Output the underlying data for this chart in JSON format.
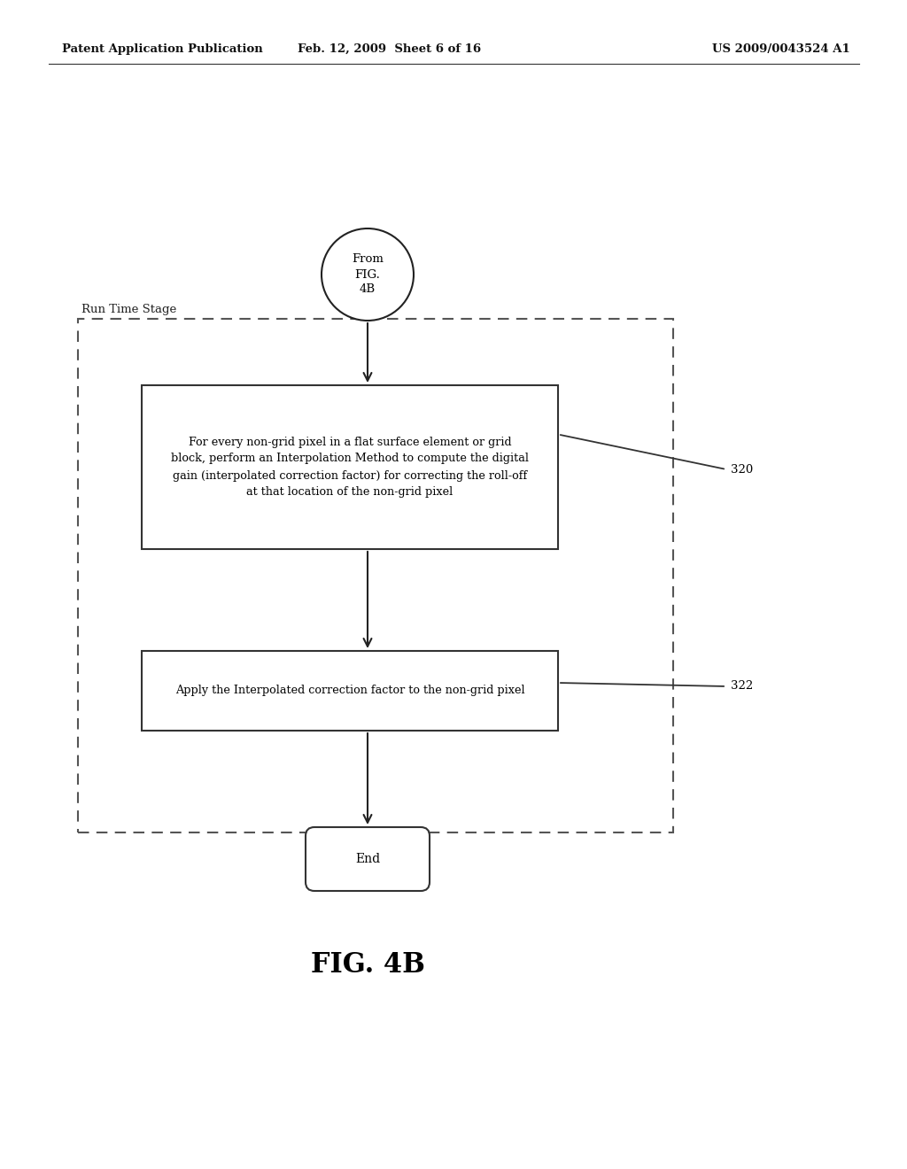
{
  "bg_color": "#ffffff",
  "text_color": "#1a1a1a",
  "header_left": "Patent Application Publication",
  "header_center": "Feb. 12, 2009  Sheet 6 of 16",
  "header_right": "US 2009/0043524 A1",
  "fig_label": "FIG. 4B",
  "start_label": "From\nFIG.\n4B",
  "end_label": "End",
  "runtime_label": "Run Time Stage",
  "box1_text": "For every non-grid pixel in a flat surface element or grid\nblock, perform an Interpolation Method to compute the digital\ngain (interpolated correction factor) for correcting the roll-off\nat that location of the non-grid pixel",
  "box2_text": "Apply the Interpolated correction factor to the non-grid pixel",
  "ref1": "320",
  "ref2": "322",
  "header_fontsize": 9.5,
  "body_fontsize": 9.0,
  "fig_label_fontsize": 22,
  "ref_fontsize": 9.5
}
